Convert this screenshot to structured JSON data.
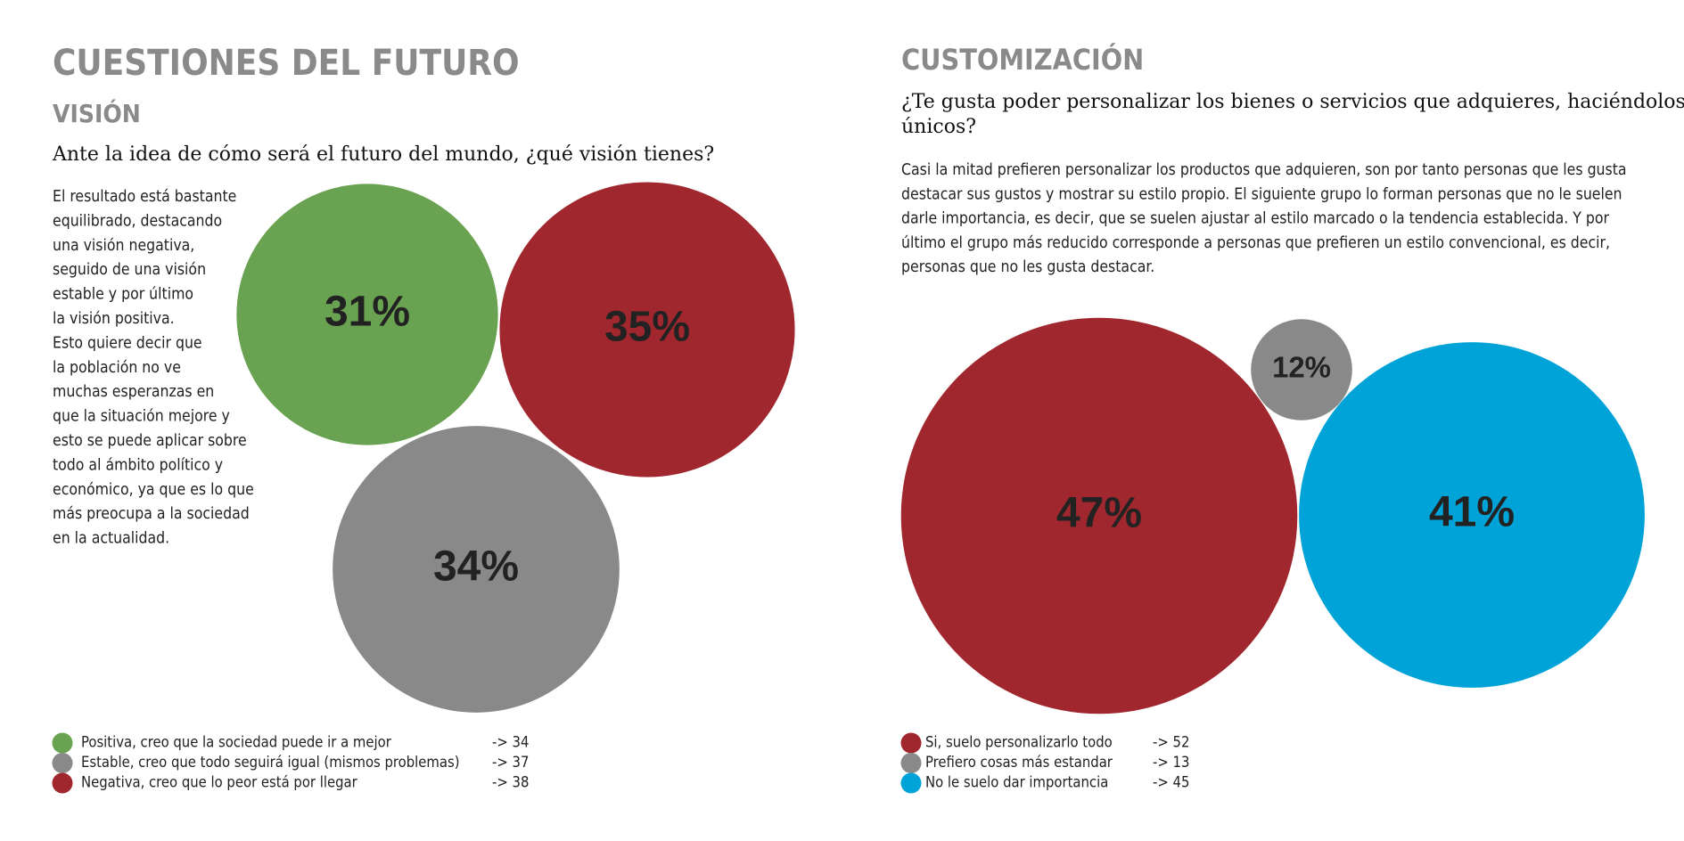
{
  "chart_data": [
    {
      "type": "bubble",
      "title": "CUESTIONES DEL FUTURO",
      "subtitle": "VISIÓN",
      "question": [
        "Ante la idea de cómo será el futuro del mundo, ¿qué visión tienes?"
      ],
      "description": [
        "El resultado está bastante",
        "equilibrado, destacando",
        "una visión negativa,",
        "seguido de una visión",
        "estable y por último",
        "la visión positiva.",
        "Esto quiere decir que",
        "la población no ve",
        "muchas esperanzas en",
        "que la situación mejore y",
        "esto se puede aplicar sobre",
        "todo al ámbito político y",
        "económico, ya que es lo que",
        "más preocupa a la sociedad",
        "en la actualidad."
      ],
      "categories": [
        "Positiva, creo que la sociedad puede ir a mejor",
        "Estable, creo que todo seguirá igual (mismos problemas)",
        "Negativa, creo que lo peor está por llegar"
      ],
      "colors": [
        "#69a250",
        "#898989",
        "#a0272e"
      ],
      "values": [
        31,
        34,
        35
      ],
      "value_labels": [
        "31%",
        "34%",
        "35%"
      ],
      "legend_values": [
        "-> 34",
        "-> 37",
        "-> 38"
      ]
    },
    {
      "type": "bubble",
      "title": "CUSTOMIZACIÓN",
      "question": [
        "¿Te gusta poder personalizar los bienes o servicios que adquieres, haciéndolos",
        "únicos?"
      ],
      "description": [
        "Casi la mitad prefieren personalizar los productos que adquieren, son por tanto personas que les gusta",
        "destacar sus gustos y mostrar su estilo propio. El siguiente grupo lo forman personas que no le suelen",
        "darle importancia, es decir, que se suelen ajustar al estilo marcado o la tendencia establecida. Y por",
        "último el grupo más reducido corresponde a personas que prefieren un estilo convencional, es decir,",
        "personas que no les gusta destacar."
      ],
      "categories": [
        "Si, suelo personalizarlo todo",
        "Prefiero cosas más estandar",
        "No le suelo dar importancia"
      ],
      "colors": [
        "#a0272e",
        "#898989",
        "#00a3d7"
      ],
      "values": [
        47,
        12,
        41
      ],
      "value_labels": [
        "47%",
        "12%",
        "41%"
      ],
      "legend_values": [
        "-> 52",
        "-> 13",
        "-> 45"
      ]
    }
  ]
}
